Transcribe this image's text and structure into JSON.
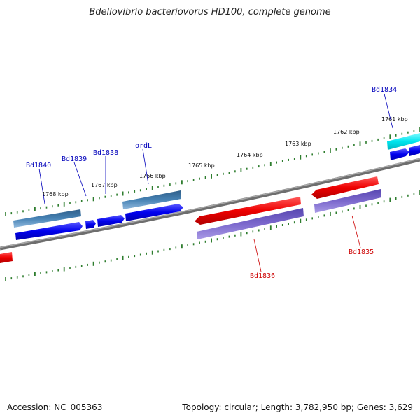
{
  "title": "Bdellovibrio bacteriovorus HD100, complete genome",
  "footer": {
    "accession": "Accession: NC_005363",
    "topology": "Topology: circular; Length: 3,782,950 bp; Genes: 3,629"
  },
  "colors": {
    "backbone": "#808080",
    "tick": "#2e7d2e",
    "forward_cds": "#0000ee",
    "forward_gene": "#4682b4",
    "reverse_cds": "#ee0000",
    "reverse_gene": "#7b68cc",
    "highlight_cds": "#00e5ee",
    "forward_label": "#0000bb",
    "reverse_label": "#cc0000"
  },
  "scale_labels": [
    {
      "kbp": 1768,
      "text": "1768 kbp"
    },
    {
      "kbp": 1767,
      "text": "1767 kbp"
    },
    {
      "kbp": 1766,
      "text": "1766 kbp"
    },
    {
      "kbp": 1765,
      "text": "1765 kbp"
    },
    {
      "kbp": 1764,
      "text": "1764 kbp"
    },
    {
      "kbp": 1763,
      "text": "1763 kbp"
    },
    {
      "kbp": 1762,
      "text": "1762 kbp"
    },
    {
      "kbp": 1761,
      "text": "1761 kbp"
    }
  ],
  "forward_labels": [
    "Bd1840",
    "Bd1839",
    "Bd1838",
    "ordL",
    "Bd1834"
  ],
  "reverse_labels": [
    "Bd1836",
    "Bd1835"
  ]
}
